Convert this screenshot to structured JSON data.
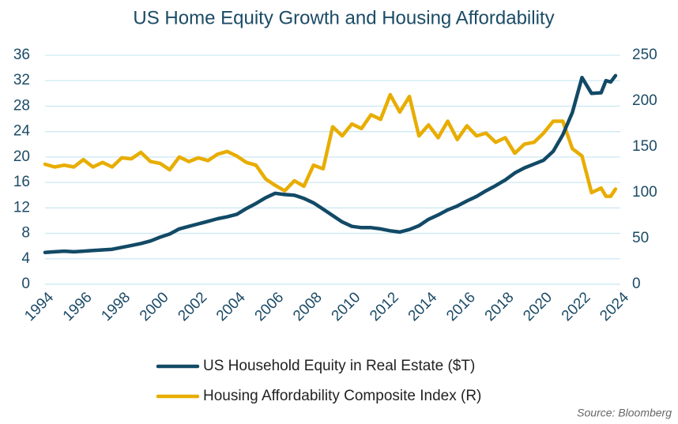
{
  "chart_data": {
    "type": "line",
    "title": "US Home Equity Growth and Housing Affordability",
    "source": "Source: Bloomberg",
    "x": [
      1994,
      1994.5,
      1995,
      1995.5,
      1996,
      1996.5,
      1997,
      1997.5,
      1998,
      1998.5,
      1999,
      1999.5,
      2000,
      2000.5,
      2001,
      2001.5,
      2002,
      2002.5,
      2003,
      2003.5,
      2004,
      2004.5,
      2005,
      2005.5,
      2006,
      2006.5,
      2007,
      2007.5,
      2008,
      2008.5,
      2009,
      2009.5,
      2010,
      2010.5,
      2011,
      2011.5,
      2012,
      2012.5,
      2013,
      2013.5,
      2014,
      2014.5,
      2015,
      2015.5,
      2016,
      2016.5,
      2017,
      2017.5,
      2018,
      2018.5,
      2019,
      2019.5,
      2020,
      2020.5,
      2021,
      2021.5,
      2022,
      2022.5,
      2023,
      2023.25,
      2023.5,
      2023.75
    ],
    "series": [
      {
        "name": "US Household Equity in Real Estate ($T)",
        "color": "#124a66",
        "values": [
          5.0,
          5.1,
          5.2,
          5.1,
          5.2,
          5.3,
          5.4,
          5.5,
          5.8,
          6.1,
          6.4,
          6.8,
          7.4,
          7.9,
          8.7,
          9.1,
          9.5,
          9.9,
          10.3,
          10.6,
          11.0,
          11.9,
          12.7,
          13.6,
          14.3,
          14.1,
          14.0,
          13.5,
          12.8,
          11.8,
          10.8,
          9.8,
          9.1,
          8.9,
          8.9,
          8.7,
          8.4,
          8.2,
          8.6,
          9.2,
          10.2,
          10.9,
          11.7,
          12.3,
          13.1,
          13.8,
          14.7,
          15.5,
          16.4,
          17.5,
          18.3,
          18.9,
          19.5,
          20.9,
          23.5,
          27.0,
          32.5,
          30.0,
          30.1,
          32.0,
          31.8,
          32.8
        ]
      },
      {
        "name": "Housing Affordability Composite Index (R)",
        "color": "#e8ad00",
        "axis": "y2",
        "values": [
          131,
          128,
          130,
          128,
          136,
          128,
          133,
          128,
          138,
          137,
          144,
          134,
          132,
          125,
          139,
          134,
          138,
          135,
          142,
          145,
          140,
          133,
          130,
          115,
          108,
          102,
          113,
          107,
          130,
          126,
          172,
          162,
          175,
          170,
          185,
          180,
          207,
          188,
          205,
          162,
          174,
          160,
          178,
          158,
          173,
          162,
          165,
          155,
          160,
          143,
          153,
          155,
          165,
          178,
          178,
          148,
          140,
          100,
          105,
          96,
          96,
          104
        ]
      }
    ],
    "xlim": [
      1994,
      2024
    ],
    "xticks": [
      1994,
      1996,
      1998,
      2000,
      2002,
      2004,
      2006,
      2008,
      2010,
      2012,
      2014,
      2016,
      2018,
      2020,
      2022,
      2024
    ],
    "ylim": [
      0,
      36
    ],
    "yticks": [
      0,
      4,
      8,
      12,
      16,
      20,
      24,
      28,
      32,
      36
    ],
    "y2lim": [
      0,
      250
    ],
    "y2ticks": [
      0,
      50,
      100,
      150,
      200,
      250
    ],
    "grid": true,
    "legend": "bottom"
  }
}
